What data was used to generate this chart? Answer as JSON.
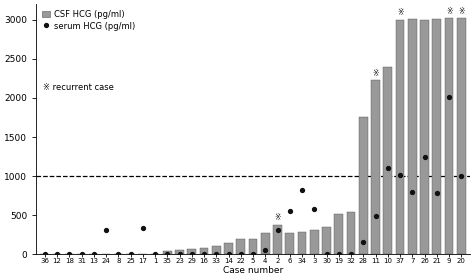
{
  "cases": [
    "36",
    "12",
    "18",
    "31",
    "13",
    "24",
    "8",
    "25",
    "17",
    "1",
    "35",
    "23",
    "29",
    "16",
    "33",
    "14",
    "22",
    "5",
    "4",
    "2",
    "6",
    "34",
    "3",
    "30",
    "19",
    "32",
    "28",
    "11",
    "10",
    "37",
    "7",
    "26",
    "21",
    "9",
    "20"
  ],
  "csf_hcg": [
    5,
    5,
    5,
    5,
    5,
    5,
    5,
    5,
    5,
    5,
    45,
    60,
    65,
    80,
    100,
    140,
    190,
    200,
    270,
    380,
    270,
    280,
    305,
    350,
    510,
    545,
    1760,
    2230,
    2400,
    3000,
    3010,
    3000,
    3010,
    3020,
    3020
  ],
  "serum_hcg": [
    5,
    5,
    5,
    5,
    5,
    305,
    5,
    5,
    330,
    5,
    5,
    5,
    5,
    5,
    5,
    5,
    5,
    5,
    50,
    310,
    560,
    820,
    580,
    5,
    5,
    5,
    155,
    490,
    1100,
    1020,
    800,
    1250,
    780,
    2010,
    1000
  ],
  "recurrent": [
    false,
    false,
    false,
    false,
    false,
    false,
    false,
    false,
    false,
    false,
    false,
    false,
    false,
    false,
    false,
    false,
    false,
    false,
    false,
    true,
    false,
    false,
    false,
    false,
    false,
    false,
    false,
    true,
    false,
    true,
    false,
    false,
    false,
    true,
    true
  ],
  "bar_color": "#999999",
  "dot_color": "#111111",
  "dashed_line_y": 1000,
  "xlabel": "Case number",
  "ylim": [
    0,
    3200
  ],
  "yticks": [
    0,
    500,
    1000,
    1500,
    2000,
    2500,
    3000
  ],
  "legend_csf": "CSF HCG (pg/ml)",
  "legend_serum": "serum HCG (pg/ml)",
  "legend_recurrent": "recurrent case",
  "recurrent_marker": "※"
}
